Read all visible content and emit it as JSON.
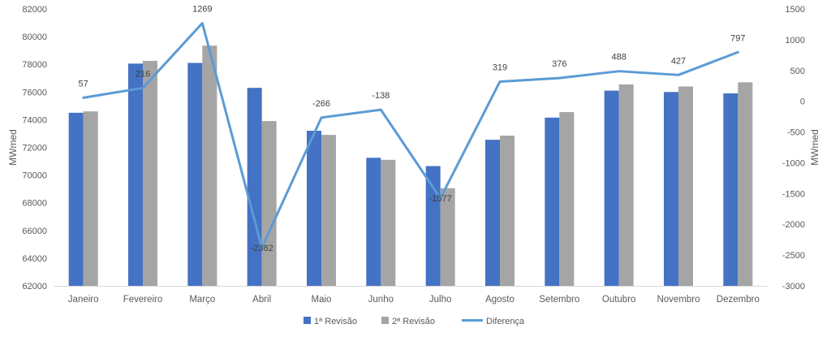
{
  "chart_data": {
    "type": "bar",
    "categories": [
      "Janeiro",
      "Fevereiro",
      "Março",
      "Abril",
      "Maio",
      "Junho",
      "Julho",
      "Agosto",
      "Setembro",
      "Outubro",
      "Novembro",
      "Dezembro"
    ],
    "series": [
      {
        "name": "1ª Revisão",
        "type": "bar",
        "axis": "left",
        "color": "#4472C4",
        "values": [
          74500,
          78050,
          78100,
          76300,
          73200,
          71250,
          70650,
          72550,
          74150,
          76100,
          76000,
          75900
        ]
      },
      {
        "name": "2ª Revisão",
        "type": "bar",
        "axis": "left",
        "color": "#A5A5A5",
        "values": [
          74600,
          78250,
          79350,
          73900,
          72900,
          71100,
          69050,
          72850,
          74550,
          76550,
          76400,
          76700
        ]
      },
      {
        "name": "Diferença",
        "type": "line",
        "axis": "right",
        "color": "#5B9BD5",
        "values": [
          57,
          216,
          1269,
          -2382,
          -266,
          -138,
          -1577,
          319,
          376,
          488,
          427,
          797
        ]
      }
    ],
    "data_labels": [
      "57",
      "216",
      "1269",
      "-2382",
      "-266",
      "-138",
      "-1577",
      "319",
      "376",
      "488",
      "427",
      "797"
    ],
    "ylabel": "MWmed",
    "y2label": "MWmed",
    "ylim": [
      62000,
      82000
    ],
    "y2lim": [
      -3000,
      1500
    ],
    "yticks": [
      "62000",
      "64000",
      "66000",
      "68000",
      "70000",
      "72000",
      "74000",
      "76000",
      "78000",
      "80000",
      "82000"
    ],
    "y2ticks": [
      "-3000",
      "-2500",
      "-2000",
      "-1500",
      "-1000",
      "-500",
      "0",
      "500",
      "1000",
      "1500"
    ],
    "grid": false,
    "legend": "bottom"
  }
}
